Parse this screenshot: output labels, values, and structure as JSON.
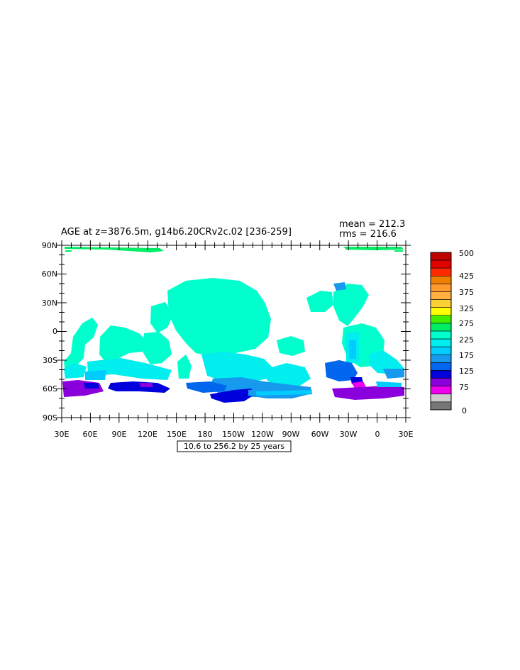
{
  "title": "AGE at z=3876.5m, g14b6.20CRv2c.02 [236-259]",
  "stats": {
    "mean": "mean = 212.3",
    "rms": "rms = 216.6"
  },
  "contour_info": "10.6 to 256.2 by 25 years",
  "map": {
    "projection": "cylindrical equidistant",
    "lon_range": [
      30,
      390
    ],
    "lat_range": [
      -90,
      90
    ],
    "lat_ticks": [
      "90N",
      "60N",
      "30N",
      "0",
      "30S",
      "60S",
      "90S"
    ],
    "lon_ticks": [
      "30E",
      "60E",
      "90E",
      "120E",
      "150E",
      "180",
      "150W",
      "120W",
      "90W",
      "60W",
      "30W",
      "0",
      "30E"
    ]
  },
  "colorbar": {
    "labels": [
      "500",
      "425",
      "375",
      "325",
      "275",
      "225",
      "175",
      "125",
      "75",
      "0"
    ],
    "colors": [
      "#bf0000",
      "#e00000",
      "#ff2a00",
      "#ee7f00",
      "#ff9a30",
      "#ffb040",
      "#ffd033",
      "#ffff00",
      "#44ee00",
      "#00ee66",
      "#00ffcc",
      "#00eeee",
      "#00ccff",
      "#1799ee",
      "#0066ee",
      "#0000dd",
      "#8a00dd",
      "#ee00ee",
      "#cccccc",
      "#777777"
    ]
  }
}
